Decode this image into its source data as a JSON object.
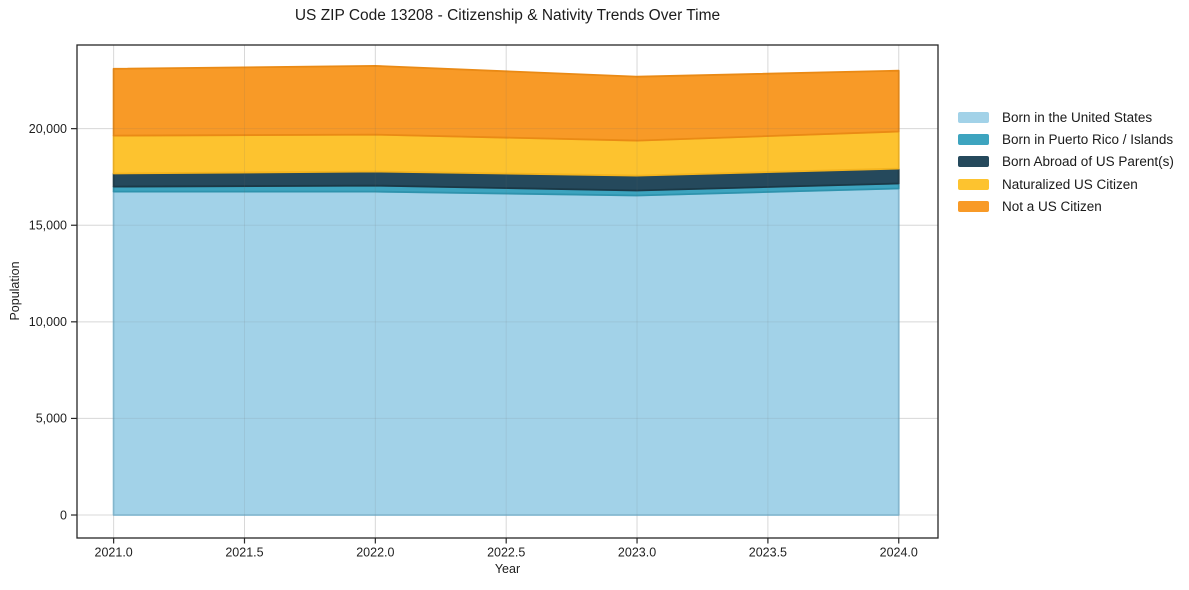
{
  "chart_data": {
    "type": "area",
    "stacked": true,
    "title": "US ZIP Code 13208 - Citizenship & Nativity Trends Over Time",
    "xlabel": "Year",
    "ylabel": "Population",
    "x": [
      2021,
      2022,
      2023,
      2024
    ],
    "series": [
      {
        "name": "Born in the United States",
        "color": "#a2d2e8",
        "edge_color": "#88bfd8",
        "values": [
          16740,
          16740,
          16540,
          16900
        ]
      },
      {
        "name": "Born in Puerto Rico / Islands",
        "color": "#3da4bf",
        "edge_color": "#2e93ad",
        "values": [
          260,
          310,
          260,
          260
        ]
      },
      {
        "name": "Born Abroad of US Parent(s)",
        "color": "#25495c",
        "edge_color": "#1b3947",
        "values": [
          680,
          730,
          770,
          770
        ]
      },
      {
        "name": "Naturalized US Citizen",
        "color": "#fdc32f",
        "edge_color": "#f4b41e",
        "values": [
          1960,
          1910,
          1810,
          1920
        ]
      },
      {
        "name": "Not a US Citizen",
        "color": "#f89a27",
        "edge_color": "#ea8a15",
        "values": [
          3460,
          3560,
          3310,
          3150
        ]
      }
    ],
    "stacked_totals": [
      23100,
      23250,
      22690,
      23000
    ],
    "xlim": [
      2020.86,
      2024.15
    ],
    "ylim": [
      -1190,
      24330
    ],
    "x_ticks": [
      2021.0,
      2021.5,
      2022.0,
      2022.5,
      2023.0,
      2023.5,
      2024.0
    ],
    "x_tick_labels": [
      "2021.0",
      "2021.5",
      "2022.0",
      "2022.5",
      "2023.0",
      "2023.5",
      "2024.0"
    ],
    "y_ticks": [
      0,
      5000,
      10000,
      15000,
      20000
    ],
    "y_tick_labels": [
      "0",
      "5,000",
      "10,000",
      "15,000",
      "20,000"
    ],
    "grid": true,
    "legend_position": "right-outside",
    "colors": {
      "grid": "#e8e8e8",
      "spine": "#262626",
      "plot_background": "#ffffff",
      "text": "#1c1c1c"
    }
  }
}
